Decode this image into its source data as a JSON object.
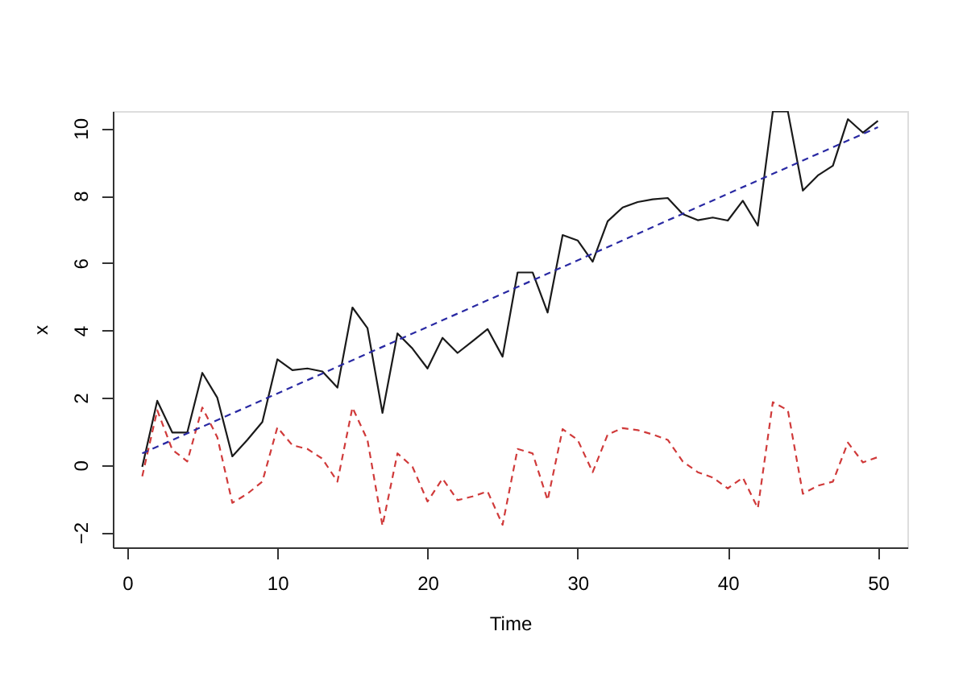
{
  "chart_data": {
    "type": "line",
    "xlabel": "Time",
    "ylabel": "x",
    "x": [
      1,
      2,
      3,
      4,
      5,
      6,
      7,
      8,
      9,
      10,
      11,
      12,
      13,
      14,
      15,
      16,
      17,
      18,
      19,
      20,
      21,
      22,
      23,
      24,
      25,
      26,
      27,
      28,
      29,
      30,
      31,
      32,
      33,
      34,
      35,
      36,
      37,
      38,
      39,
      40,
      41,
      42,
      43,
      44,
      45,
      46,
      47,
      48,
      49,
      50
    ],
    "series": [
      {
        "color": "#1a1a1a",
        "line_style": "solid",
        "values": [
          -0.05,
          1.91,
          0.97,
          0.97,
          2.74,
          2.0,
          0.26,
          0.75,
          1.28,
          3.14,
          2.82,
          2.87,
          2.78,
          2.3,
          4.68,
          4.07,
          1.55,
          3.91,
          3.46,
          2.87,
          3.78,
          3.33,
          3.68,
          4.04,
          3.22,
          5.72,
          5.72,
          4.53,
          6.83,
          6.67,
          6.04,
          7.24,
          7.65,
          7.81,
          7.89,
          7.93,
          7.45,
          7.27,
          7.35,
          7.26,
          7.85,
          7.11,
          10.5,
          10.5,
          8.15,
          8.6,
          8.89,
          10.27,
          9.87,
          10.22
        ]
      },
      {
        "color": "#d03a3a",
        "line_style": "dashed",
        "values": [
          -0.33,
          1.63,
          0.46,
          0.11,
          1.71,
          0.83,
          -1.12,
          -0.85,
          -0.49,
          1.12,
          0.59,
          0.48,
          0.19,
          -0.49,
          1.71,
          0.75,
          -1.8,
          0.35,
          -0.05,
          -1.08,
          -0.4,
          -1.04,
          -0.93,
          -0.78,
          -1.77,
          0.48,
          0.35,
          -1.04,
          1.07,
          0.75,
          -0.21,
          0.91,
          1.1,
          1.04,
          0.91,
          0.75,
          0.11,
          -0.21,
          -0.37,
          -0.69,
          -0.37,
          -1.28,
          1.87,
          1.63,
          -0.85,
          -0.61,
          -0.49,
          0.67,
          0.08,
          0.24
        ]
      },
      {
        "type": "line",
        "color": "#2929a3",
        "line_style": "dashed",
        "x": [
          1,
          50
        ],
        "values": [
          0.35,
          10.03
        ]
      }
    ],
    "xlim": [
      -0.96,
      51.96
    ],
    "ylim": [
      -2.44,
      10.51
    ],
    "xticks": [
      0,
      10,
      20,
      30,
      40,
      50
    ],
    "yticks": [
      -2,
      0,
      2,
      4,
      6,
      8,
      10
    ],
    "grid": false
  }
}
